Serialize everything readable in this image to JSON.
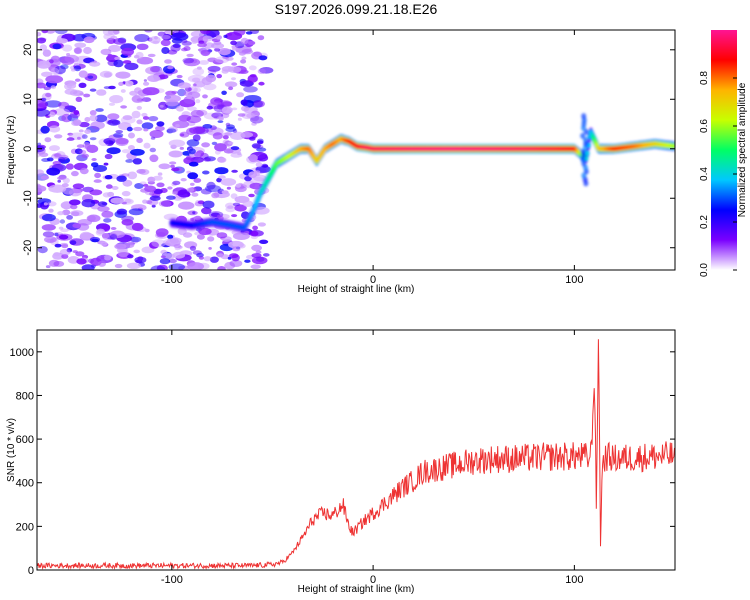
{
  "chart_data": [
    {
      "type": "heatmap",
      "title": "S197.2026.099.21.18.E26",
      "xlabel": "Height of straight line (km)",
      "ylabel": "Frequency (Hz)",
      "xlim": [
        -167,
        150
      ],
      "ylim": [
        -24.5,
        24
      ],
      "x_ticks": [
        -100,
        0,
        100
      ],
      "y_ticks": [
        -20,
        -10,
        0,
        10,
        20
      ],
      "noise_region_x": [
        -167,
        -53
      ],
      "ridge": {
        "x": [
          -100,
          -90,
          -80,
          -70,
          -64,
          -60,
          -56,
          -52,
          -48,
          -44,
          -40,
          -36,
          -32,
          -28,
          -24,
          -20,
          -16,
          -12,
          -8,
          -4,
          0,
          20,
          40,
          60,
          80,
          100,
          103,
          106,
          108,
          112,
          120,
          130,
          140,
          150
        ],
        "freq": [
          -15,
          -15.5,
          -14.8,
          -15.5,
          -16,
          -13,
          -9,
          -6,
          -3,
          -2,
          -1,
          0,
          0,
          -2.5,
          0,
          1,
          2,
          1.5,
          0.5,
          0.3,
          0,
          0,
          0,
          0,
          0,
          0,
          -1,
          -2,
          3.5,
          0,
          0,
          0.5,
          1,
          0.5
        ],
        "amplitude": [
          0.25,
          0.25,
          0.3,
          0.3,
          0.3,
          0.35,
          0.4,
          0.45,
          0.55,
          0.6,
          0.65,
          0.75,
          0.8,
          0.7,
          0.75,
          0.8,
          0.75,
          0.85,
          0.9,
          0.95,
          0.95,
          0.97,
          0.98,
          0.97,
          0.95,
          0.9,
          0.6,
          0.4,
          0.35,
          0.7,
          0.85,
          0.8,
          0.7,
          0.6
        ]
      },
      "colorbar": {
        "label": "Normalized spectral amplitude",
        "range": [
          0,
          1
        ],
        "ticks": [
          "0.0",
          "0.2",
          "0.4",
          "0.6",
          "0.8"
        ],
        "stops": [
          "#ffffff",
          "#7a00ff",
          "#0000ff",
          "#00c8ff",
          "#00ff64",
          "#c8ff00",
          "#ffb400",
          "#ff0000",
          "#ff1493"
        ]
      }
    },
    {
      "type": "line",
      "xlabel": "Height of straight line (km)",
      "ylabel": "SNR (10 * v/v)",
      "xlim": [
        -167,
        150
      ],
      "ylim": [
        0,
        1100
      ],
      "x_ticks": [
        -100,
        0,
        100
      ],
      "y_ticks": [
        0,
        200,
        400,
        600,
        800,
        1000
      ],
      "color": "#ee3333",
      "series": [
        {
          "name": "SNR",
          "x": [
            -167,
            -140,
            -110,
            -80,
            -60,
            -50,
            -45,
            -40,
            -35,
            -30,
            -25,
            -20,
            -15,
            -12,
            -10,
            -5,
            0,
            5,
            10,
            15,
            20,
            25,
            30,
            40,
            50,
            60,
            70,
            80,
            90,
            100,
            105,
            108,
            110,
            111,
            112,
            113,
            114,
            116,
            120,
            130,
            140,
            150
          ],
          "y": [
            20,
            20,
            20,
            20,
            20,
            25,
            35,
            80,
            150,
            230,
            260,
            250,
            300,
            200,
            170,
            220,
            260,
            300,
            340,
            380,
            410,
            450,
            460,
            480,
            500,
            510,
            510,
            515,
            520,
            520,
            520,
            510,
            860,
            250,
            1100,
            120,
            500,
            520,
            510,
            515,
            520,
            525
          ]
        }
      ]
    }
  ]
}
